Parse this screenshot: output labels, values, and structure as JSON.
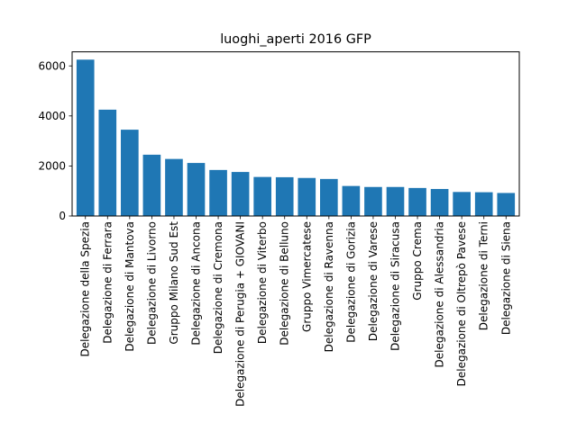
{
  "chart_data": {
    "type": "bar",
    "title": "luoghi_aperti  2016  GFP",
    "xlabel": "",
    "ylabel": "",
    "categories": [
      "Delegazione della Spezia",
      "Delegazione di Ferrara",
      "Delegazione di Mantova",
      "Delegazione di Livorno",
      "Gruppo Milano Sud Est",
      "Delegazione di Ancona",
      "Delegazione di Cremona",
      "Delegazione di Perugia + GIOVANI",
      "Delegazione di Viterbo",
      "Delegazione di Belluno",
      "Gruppo Vimercatese",
      "Delegazione di Ravenna",
      "Delegazione di Gorizia",
      "Delegazione di Varese",
      "Delegazione di Siracusa",
      "Gruppo Crema",
      "Delegazione di Alessandria",
      "Delegazione di Oltrepò Pavese",
      "Delegazione di Terni",
      "Delegazione di Siena"
    ],
    "values": [
      6250,
      4250,
      3450,
      2450,
      2280,
      2120,
      1840,
      1760,
      1560,
      1550,
      1520,
      1480,
      1200,
      1160,
      1160,
      1120,
      1080,
      960,
      950,
      920
    ],
    "ylim": [
      0,
      6562
    ],
    "yticks": [
      0,
      2000,
      4000,
      6000
    ],
    "ytick_labels": [
      "0",
      "2000",
      "4000",
      "6000"
    ],
    "grid": false,
    "legend": "none",
    "bar_color": "#1f77b4"
  }
}
